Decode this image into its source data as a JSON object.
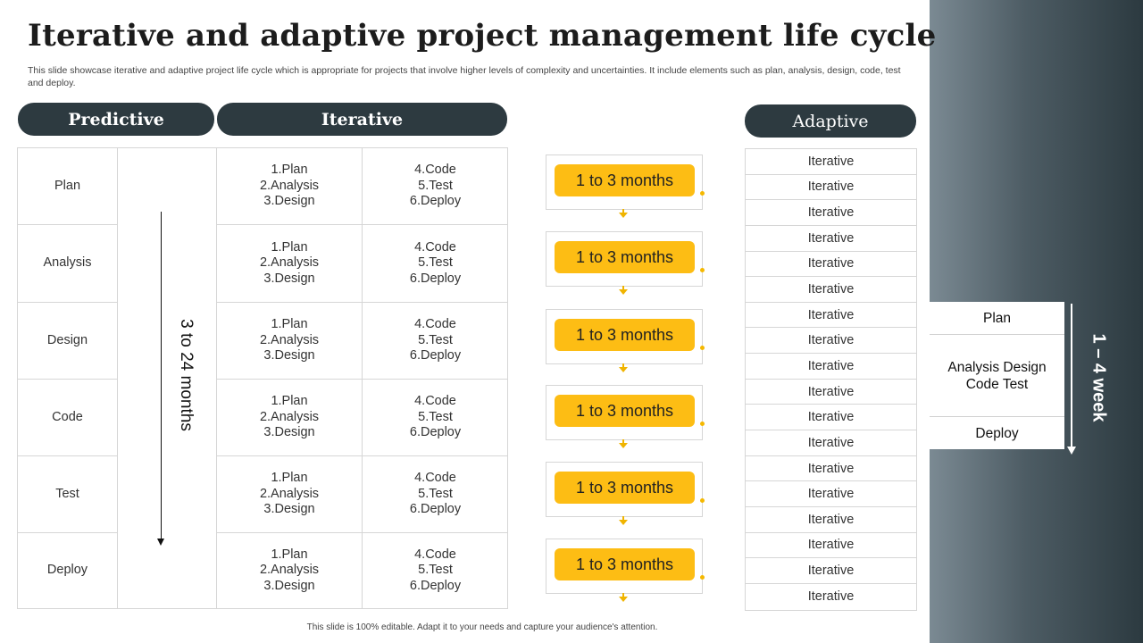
{
  "title": "Iterative and adaptive project management life cycle",
  "subtitle": "This slide showcase iterative and adaptive project life cycle which is appropriate for projects that involve higher levels of complexity and uncertainties. It include elements such as plan, analysis, design, code, test and deploy.",
  "headers": {
    "predictive": "Predictive",
    "iterative": "Iterative",
    "adaptive": "Adaptive"
  },
  "predictive": {
    "phases": [
      "Plan",
      "Analysis",
      "Design",
      "Code",
      "Test",
      "Deploy"
    ],
    "duration": "3 to 24 months"
  },
  "iterative": {
    "col_a": [
      "1.Plan",
      "2.Analysis",
      "3.Design"
    ],
    "col_b": [
      "4.Code",
      "5.Test",
      "6.Deploy"
    ],
    "row_count": 6,
    "timebox_label": "1 to 3 months",
    "timebox_count": 6
  },
  "adaptive": {
    "rows": [
      "Iterative",
      "Iterative",
      "Iterative",
      "Iterative",
      "Iterative",
      "Iterative",
      "Iterative",
      "Iterative",
      "Iterative",
      "Iterative",
      "Iterative",
      "Iterative",
      "Iterative",
      "Iterative",
      "Iterative",
      "Iterative",
      "Iterative",
      "Iterative"
    ],
    "cycle": [
      "Plan",
      "Analysis Design Code Test",
      "Deploy"
    ],
    "duration": "1 – 4 week"
  },
  "footer": "This slide is 100% editable. Adapt it to your needs and capture your audience's attention.",
  "colors": {
    "pill": "#2d3a40",
    "accent": "#fdbd14",
    "panel": "#4d5c64"
  }
}
